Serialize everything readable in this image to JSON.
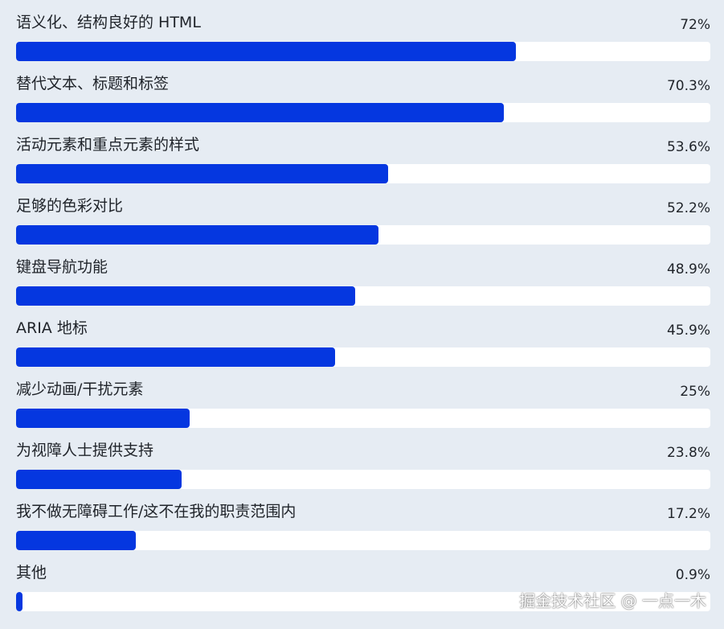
{
  "chart_data": {
    "type": "bar",
    "orientation": "horizontal",
    "categories": [
      "语义化、结构良好的 HTML",
      "替代文本、标题和标签",
      "活动元素和重点元素的样式",
      "足够的色彩对比",
      "键盘导航功能",
      "ARIA 地标",
      "减少动画/干扰元素",
      "为视障人士提供支持",
      "我不做无障碍工作/这不在我的职责范围内",
      "其他"
    ],
    "values": [
      72,
      70.3,
      53.6,
      52.2,
      48.9,
      45.9,
      25,
      23.8,
      17.2,
      0.9
    ],
    "value_labels": [
      "72%",
      "70.3%",
      "53.6%",
      "52.2%",
      "48.9%",
      "45.9%",
      "25%",
      "23.8%",
      "17.2%",
      "0.9%"
    ],
    "xlim": [
      0,
      100
    ],
    "grid": false,
    "colors": {
      "bar": "#0537e0",
      "track": "#ffffff",
      "background": "#e6ecf3"
    }
  },
  "watermark": "掘金技术社区 @ 一点一木"
}
